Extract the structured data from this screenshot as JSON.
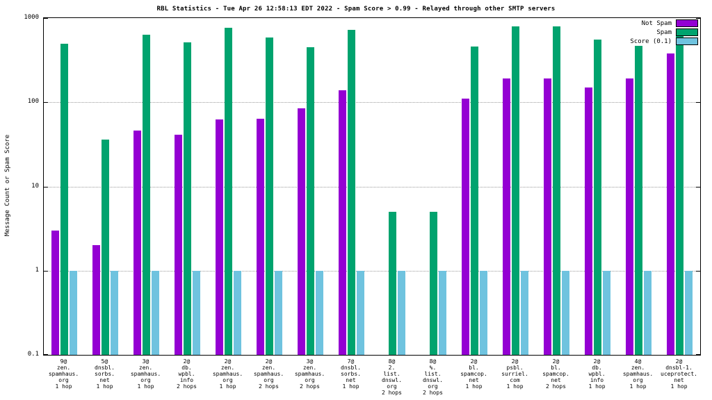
{
  "title": "RBL Statistics - Tue Apr 26 12:58:13 EDT 2022 - Spam Score > 0.99 - Relayed through other SMTP servers",
  "ylabel": "Message Count or Spam Score",
  "colors": {
    "not_spam": "#9400d3",
    "spam": "#00a36e",
    "score": "#6fc3df",
    "grid": "#9a9a9a"
  },
  "chart_data": {
    "type": "bar",
    "title": "RBL Statistics - Tue Apr 26 12:58:13 EDT 2022 - Spam Score > 0.99 - Relayed through other SMTP servers",
    "ylabel": "Message Count or Spam Score",
    "xlabel": "",
    "y_scale": "log",
    "ylim": [
      0.1,
      1000
    ],
    "yticks": [
      1000,
      100,
      10,
      1,
      0.1
    ],
    "grid": true,
    "legend_position": "top-right",
    "categories": [
      [
        "9@",
        "zen.",
        "spamhaus.",
        "org",
        "1 hop"
      ],
      [
        "5@",
        "dnsbl.",
        "sorbs.",
        "net",
        "1 hop"
      ],
      [
        "3@",
        "zen.",
        "spamhaus.",
        "org",
        "1 hop"
      ],
      [
        "2@",
        "db.",
        "wpbl.",
        "info",
        "2 hops"
      ],
      [
        "2@",
        "zen.",
        "spamhaus.",
        "org",
        "1 hop"
      ],
      [
        "2@",
        "zen.",
        "spamhaus.",
        "org",
        "2 hops"
      ],
      [
        "3@",
        "zen.",
        "spamhaus.",
        "org",
        "2 hops"
      ],
      [
        "7@",
        "dnsbl.",
        "sorbs.",
        "net",
        "1 hop"
      ],
      [
        "8@",
        "2.",
        "list.",
        "dnswl.",
        "org",
        "2 hops"
      ],
      [
        "8@",
        "%.",
        "list.",
        "dnswl.",
        "org",
        "2 hops"
      ],
      [
        "2@",
        "bl.",
        "spamcop.",
        "net",
        "1 hop"
      ],
      [
        "2@",
        "psbl.",
        "surriel.",
        "com",
        "1 hop"
      ],
      [
        "2@",
        "bl.",
        "spamcop.",
        "net",
        "2 hops"
      ],
      [
        "2@",
        "db.",
        "wpbl.",
        "info",
        "1 hop"
      ],
      [
        "4@",
        "zen.",
        "spamhaus.",
        "org",
        "1 hop"
      ],
      [
        "2@",
        "dnsbl-1.",
        "uceprotect.",
        "net",
        "1 hop"
      ]
    ],
    "series": [
      {
        "name": "Not Spam",
        "color": "#9400d3",
        "values": [
          3,
          2,
          46,
          41,
          62,
          64,
          85,
          140,
          null,
          null,
          110,
          190,
          190,
          150,
          190,
          380
        ]
      },
      {
        "name": "Spam",
        "color": "#00a36e",
        "values": [
          500,
          36,
          640,
          510,
          760,
          590,
          450,
          720,
          5,
          5,
          460,
          800,
          800,
          550,
          470,
          650
        ]
      },
      {
        "name": "Score (0.1)",
        "color": "#6fc3df",
        "values": [
          1,
          1,
          1,
          1,
          1,
          1,
          1,
          1,
          1,
          1,
          1,
          1,
          1,
          1,
          1,
          1
        ]
      }
    ]
  }
}
